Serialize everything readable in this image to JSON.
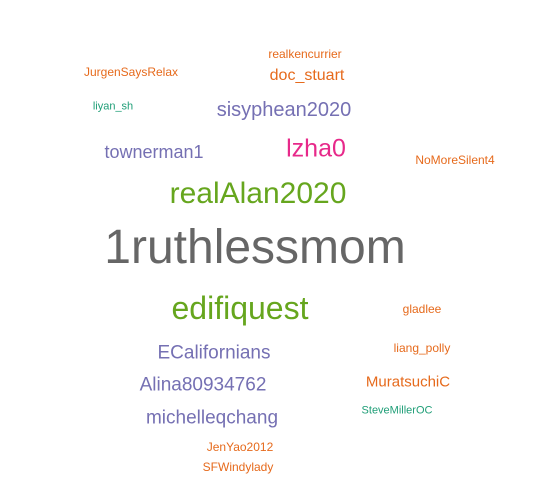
{
  "words": [
    {
      "text": "realkencurrier",
      "color": "#e66a1c"
    },
    {
      "text": "JurgenSaysRelax",
      "color": "#e66a1c"
    },
    {
      "text": "doc_stuart",
      "color": "#e66a1c"
    },
    {
      "text": "liyan_sh",
      "color": "#1f9e77"
    },
    {
      "text": "sisyphean2020",
      "color": "#7570b3"
    },
    {
      "text": "townerman1",
      "color": "#7570b3"
    },
    {
      "text": "lzha0",
      "color": "#e7298a"
    },
    {
      "text": "NoMoreSilent4",
      "color": "#e66a1c"
    },
    {
      "text": "realAlan2020",
      "color": "#66a61e"
    },
    {
      "text": "1ruthlessmom",
      "color": "#666666"
    },
    {
      "text": "edifiquest",
      "color": "#66a61e"
    },
    {
      "text": "gladlee",
      "color": "#e66a1c"
    },
    {
      "text": "ECalifornians",
      "color": "#7570b3"
    },
    {
      "text": "liang_polly",
      "color": "#e66a1c"
    },
    {
      "text": "Alina80934762",
      "color": "#7570b3"
    },
    {
      "text": "MuratsuchiC",
      "color": "#e66a1c"
    },
    {
      "text": "michelleqchang",
      "color": "#7570b3"
    },
    {
      "text": "SteveMillerOC",
      "color": "#1f9e77"
    },
    {
      "text": "JenYao2012",
      "color": "#e66a1c"
    },
    {
      "text": "SFWindylady",
      "color": "#e66a1c"
    }
  ]
}
